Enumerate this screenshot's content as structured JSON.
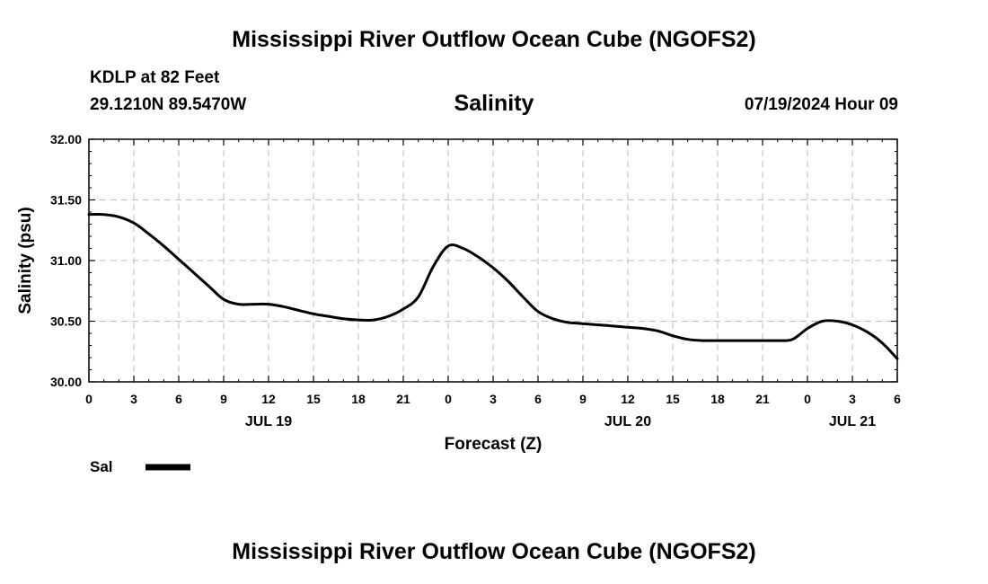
{
  "header": {
    "title": "Mississippi River Outflow Ocean Cube (NGOFS2)",
    "station": "KDLP at 82 Feet",
    "coords": "29.1210N  89.5470W",
    "datetime": "07/19/2024 Hour 09"
  },
  "footer": {
    "title": "Mississippi River Outflow Ocean Cube (NGOFS2)"
  },
  "chart_data": {
    "type": "line",
    "title": "Salinity",
    "xlabel": "Forecast (Z)",
    "ylabel": "Salinity (psu)",
    "xlim": [
      0,
      54
    ],
    "ylim": [
      30.0,
      32.0
    ],
    "y_ticks": [
      30.0,
      30.5,
      31.0,
      31.5,
      32.0
    ],
    "y_tick_labels": [
      "30.00",
      "30.50",
      "31.00",
      "31.50",
      "32.00"
    ],
    "x_ticks": [
      0,
      3,
      6,
      9,
      12,
      15,
      18,
      21,
      24,
      27,
      30,
      33,
      36,
      39,
      42,
      45,
      48,
      51,
      54
    ],
    "x_tick_labels": [
      "0",
      "3",
      "6",
      "9",
      "12",
      "15",
      "18",
      "21",
      "0",
      "3",
      "6",
      "9",
      "12",
      "15",
      "18",
      "21",
      "0",
      "3",
      "6"
    ],
    "day_labels": [
      {
        "x": 12,
        "label": "JUL 19"
      },
      {
        "x": 36,
        "label": "JUL 20"
      },
      {
        "x": 51,
        "label": "JUL 21"
      }
    ],
    "grid": true,
    "legend": {
      "position": "bottom-left",
      "entries": [
        "Sal"
      ]
    },
    "series": [
      {
        "name": "Sal",
        "color": "#000000",
        "x": [
          0,
          1,
          2,
          3,
          4,
          5,
          6,
          7,
          8,
          9,
          10,
          11,
          12,
          13,
          14,
          15,
          16,
          17,
          18,
          19,
          20,
          21,
          22,
          23,
          24,
          25,
          26,
          27,
          28,
          29,
          30,
          31,
          32,
          33,
          34,
          35,
          36,
          37,
          38,
          39,
          40,
          41,
          42,
          43,
          44,
          45,
          46,
          47,
          48,
          49,
          50,
          51,
          52,
          53,
          54
        ],
        "values": [
          31.38,
          31.38,
          31.36,
          31.31,
          31.22,
          31.12,
          31.01,
          30.9,
          30.79,
          30.68,
          30.64,
          30.64,
          30.64,
          30.62,
          30.59,
          30.56,
          30.54,
          30.52,
          30.51,
          30.51,
          30.54,
          30.6,
          30.7,
          30.95,
          31.12,
          31.1,
          31.03,
          30.94,
          30.83,
          30.7,
          30.58,
          30.52,
          30.49,
          30.48,
          30.47,
          30.46,
          30.45,
          30.44,
          30.42,
          30.38,
          30.35,
          30.34,
          30.34,
          30.34,
          30.34,
          30.34,
          30.34,
          30.35,
          30.44,
          30.5,
          30.5,
          30.47,
          30.41,
          30.32,
          30.19
        ]
      }
    ]
  }
}
